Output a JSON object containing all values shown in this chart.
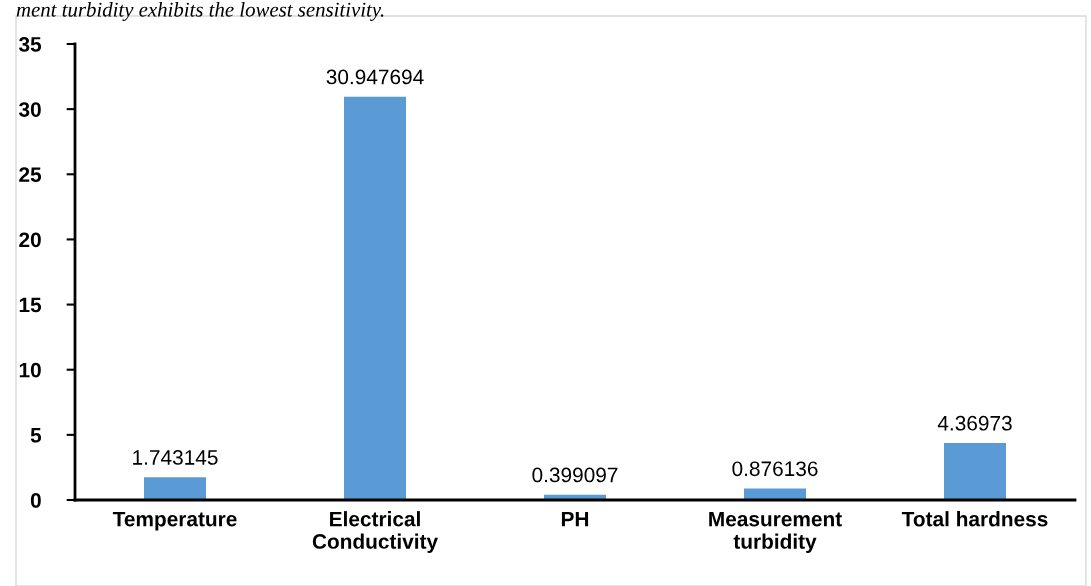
{
  "chart_data": {
    "type": "bar",
    "categories": [
      "Temperature",
      "Electrical\nConductivity",
      "PH",
      "Measurement\nturbidity",
      "Total hardness"
    ],
    "values": [
      1.743145,
      30.947694,
      0.399097,
      0.876136,
      4.36973
    ],
    "value_labels": [
      "1.743145",
      "30.947694",
      "0.399097",
      "0.876136",
      "4.36973"
    ],
    "color": "#5b9bd5",
    "ylim": [
      0,
      35
    ],
    "yticks": [
      0,
      5,
      10,
      15,
      20,
      25,
      30,
      35
    ],
    "grid": false,
    "legend": false,
    "annotations": [
      "ment turbidity exhibits the lowest sensitivity."
    ]
  }
}
